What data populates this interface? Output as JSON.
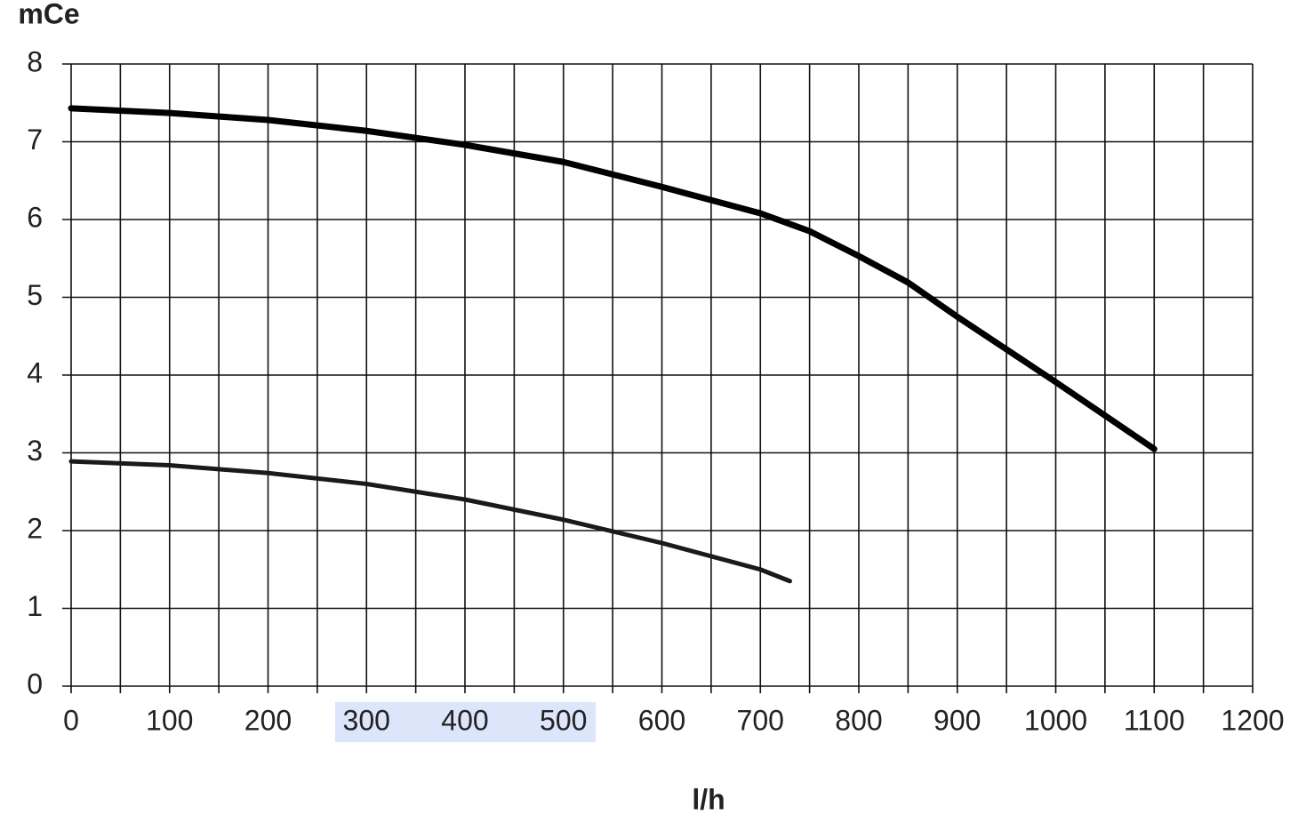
{
  "chart_data": {
    "type": "line",
    "y_label": "mCe",
    "x_label": "l/h",
    "xlim": [
      0,
      1200
    ],
    "xticks": [
      0,
      100,
      200,
      300,
      400,
      500,
      600,
      700,
      800,
      900,
      1000,
      1100,
      1200
    ],
    "ylim": [
      0,
      8
    ],
    "yticks": [
      0,
      1,
      2,
      3,
      4,
      5,
      6,
      7,
      8
    ],
    "grid": true,
    "minor_x_grid": true,
    "series": [
      {
        "color": "#000000",
        "x": [
          0,
          100,
          200,
          300,
          400,
          500,
          600,
          700,
          750,
          800,
          850,
          900,
          950,
          1000,
          1050,
          1100
        ],
        "values": [
          7.43,
          7.37,
          7.28,
          7.14,
          6.96,
          6.74,
          6.42,
          6.08,
          5.85,
          5.53,
          5.19,
          4.75,
          4.33,
          3.91,
          3.48,
          3.05
        ]
      },
      {
        "color": "#1a1a1a",
        "x": [
          0,
          100,
          200,
          300,
          400,
          500,
          600,
          700,
          730
        ],
        "values": [
          2.89,
          2.84,
          2.74,
          2.6,
          2.4,
          2.14,
          1.84,
          1.5,
          1.35
        ]
      }
    ]
  }
}
